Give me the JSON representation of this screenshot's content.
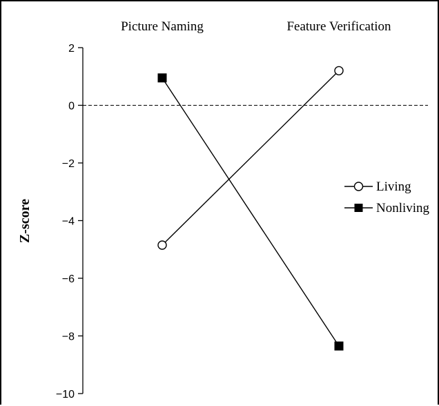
{
  "chart_data": {
    "type": "line",
    "categories": [
      "Picture Naming",
      "Feature Verification"
    ],
    "series": [
      {
        "name": "Living",
        "values": [
          -4.85,
          1.2
        ],
        "marker": "open-circle"
      },
      {
        "name": "Nonliving",
        "values": [
          0.95,
          -8.35
        ],
        "marker": "filled-square"
      }
    ],
    "ylabel": "Z-score",
    "ylim": [
      -10,
      2
    ],
    "yticks": [
      2,
      0,
      -2,
      -4,
      -6,
      -8,
      -10
    ],
    "ytick_labels": [
      "2",
      "0",
      "−2",
      "−4",
      "−6",
      "−8",
      "−10"
    ],
    "reference_line": {
      "y": 0,
      "style": "dashed"
    },
    "legend_position": "right",
    "grid": false,
    "colors": {
      "line": "#000000",
      "background": "#ffffff"
    }
  }
}
